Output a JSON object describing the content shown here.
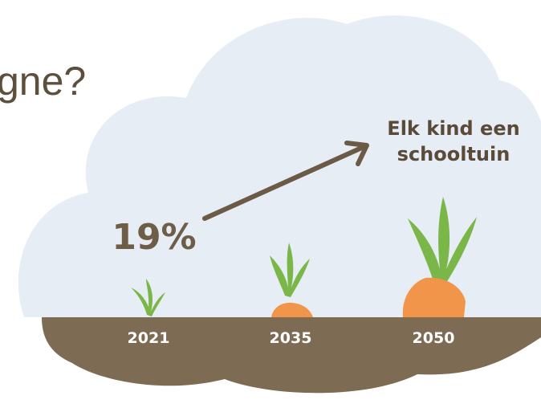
{
  "heading": "gne?",
  "annotation": {
    "lines": [
      "Elk kind een",
      "schooltuin"
    ]
  },
  "stat": "19%",
  "years": [
    "2021",
    "2035",
    "2050"
  ]
}
